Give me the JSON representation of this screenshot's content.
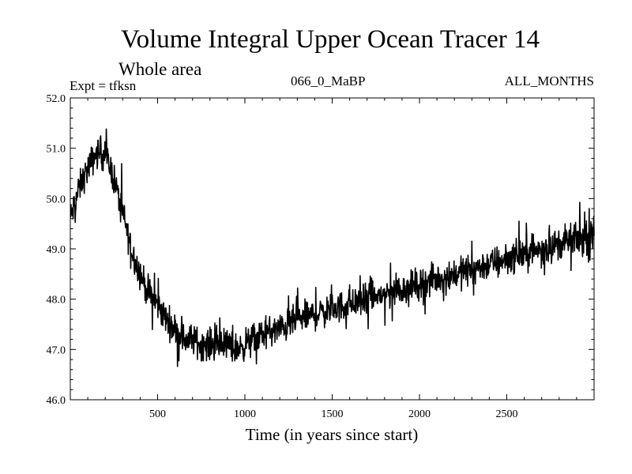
{
  "header": {
    "title": "Volume Integral Upper Ocean Tracer 14",
    "subtitle": "Whole area",
    "experiment": "Expt = tfksn",
    "run_label": "066_0_MaBP",
    "months_label": "ALL_MONTHS"
  },
  "chart_data": {
    "type": "line",
    "title": "Volume Integral Upper Ocean Tracer 14",
    "subtitle": "Whole area",
    "xlabel": "Time (in years since start)",
    "ylabel": "",
    "xlim": [
      0,
      3000
    ],
    "ylim": [
      46.0,
      52.0
    ],
    "x_ticks": [
      500,
      1000,
      1500,
      2000,
      2500
    ],
    "x_tick_labels": [
      "500",
      "1000",
      "1500",
      "2000",
      "2500"
    ],
    "y_ticks": [
      46.0,
      47.0,
      48.0,
      49.0,
      50.0,
      51.0,
      52.0
    ],
    "y_tick_labels": [
      "46.0",
      "47.0",
      "48.0",
      "49.0",
      "50.0",
      "51.0",
      "52.0"
    ],
    "grid": false,
    "line_color": "#000000",
    "series": [
      {
        "name": "Tracer 14",
        "trend": {
          "x": [
            0,
            50,
            100,
            150,
            200,
            250,
            300,
            350,
            400,
            450,
            500,
            550,
            600,
            650,
            700,
            750,
            800,
            850,
            900,
            950,
            1000,
            1100,
            1200,
            1300,
            1400,
            1500,
            1600,
            1700,
            1800,
            1900,
            2000,
            2100,
            2200,
            2300,
            2400,
            2500,
            2600,
            2700,
            2800,
            2900,
            3000
          ],
          "y": [
            49.6,
            50.2,
            50.6,
            50.9,
            50.9,
            50.4,
            49.7,
            49.0,
            48.5,
            48.1,
            47.9,
            47.6,
            47.4,
            47.2,
            47.2,
            47.1,
            47.1,
            47.1,
            47.1,
            47.0,
            47.1,
            47.3,
            47.4,
            47.6,
            47.7,
            47.8,
            47.9,
            48.0,
            48.1,
            48.2,
            48.3,
            48.4,
            48.5,
            48.6,
            48.7,
            48.8,
            48.9,
            49.0,
            49.1,
            49.2,
            49.2
          ]
        },
        "noise_amplitude": 0.45,
        "samples": 1500
      }
    ]
  }
}
